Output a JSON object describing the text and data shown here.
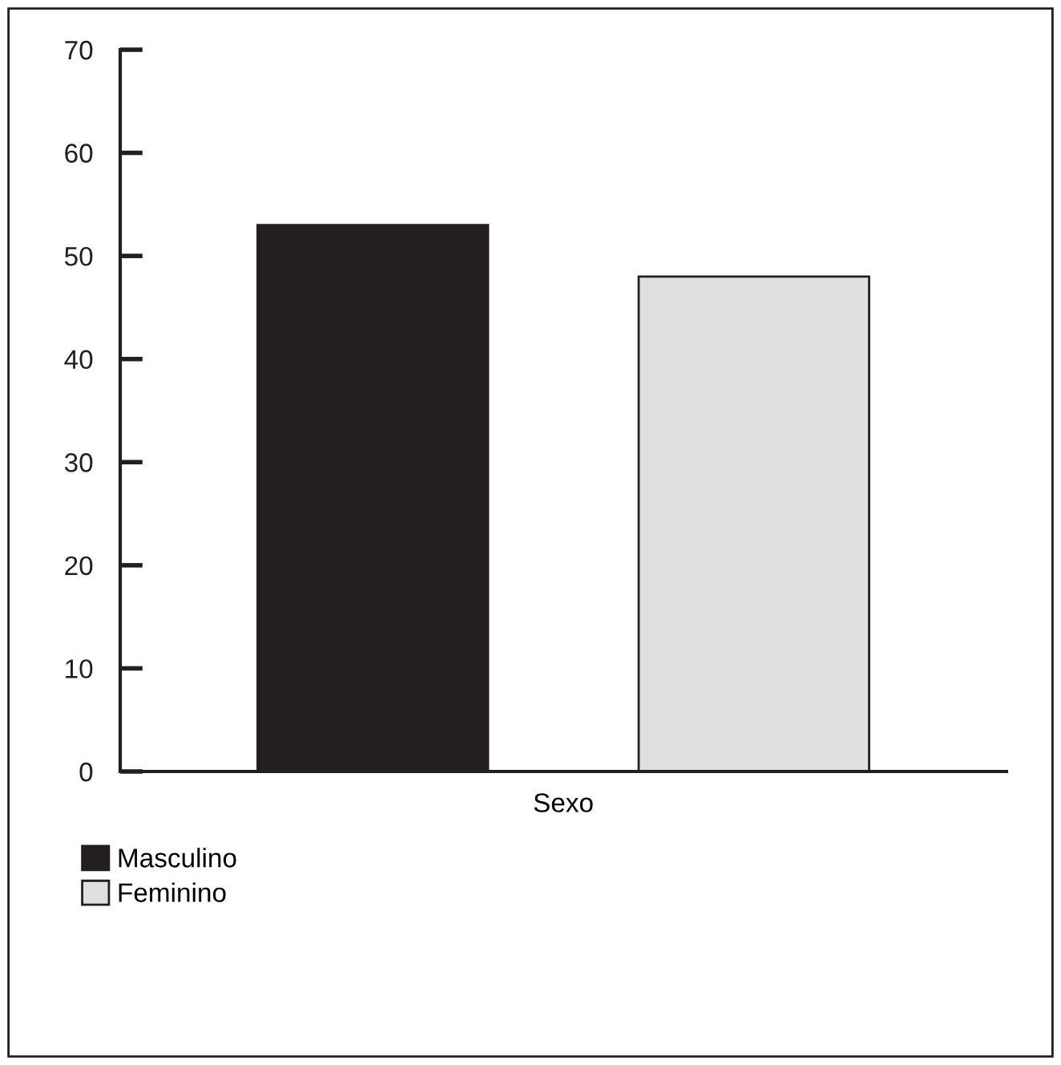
{
  "chart_data": {
    "type": "bar",
    "categories": [
      null
    ],
    "xlabel": "Sexo",
    "series": [
      {
        "name": "Masculino",
        "color": "#231f20",
        "values": [
          53
        ]
      },
      {
        "name": "Feminino",
        "color": "#dfe0e2",
        "values": [
          48
        ]
      }
    ],
    "ylim": [
      0,
      70
    ],
    "yticks": [
      0,
      10,
      20,
      30,
      40,
      50,
      60,
      70
    ],
    "grid": false,
    "legend": "bottom left"
  }
}
